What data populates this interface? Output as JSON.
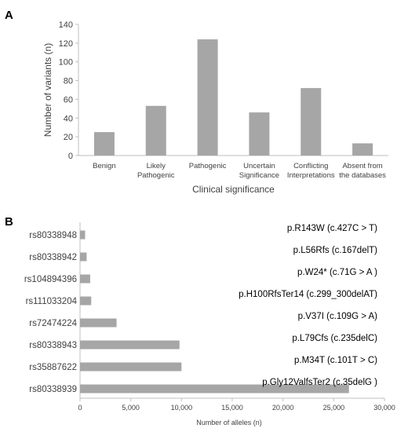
{
  "chart_data": [
    {
      "panel": "A",
      "type": "bar",
      "categories": [
        [
          "Benign"
        ],
        [
          "Likely",
          "Pathogenic"
        ],
        [
          "Pathogenic"
        ],
        [
          "Uncertain",
          "Significance"
        ],
        [
          "Conflicting",
          "Interpretations"
        ],
        [
          "Absent from",
          "the databases"
        ]
      ],
      "values": [
        25,
        53,
        124,
        46,
        72,
        13
      ],
      "xlabel": "Clinical significance",
      "ylabel": "Number of variants (n)",
      "ylim": [
        0,
        140
      ],
      "yticks": [
        0,
        20,
        40,
        60,
        80,
        100,
        120,
        140
      ],
      "grid": false,
      "color": "#a6a6a6"
    },
    {
      "panel": "B",
      "type": "bar",
      "orientation": "horizontal",
      "categories": [
        "rs80338948",
        "rs80338942",
        "rs104894396",
        "rs111033204",
        "rs72474224",
        "rs80338943",
        "rs35887622",
        "rs80338939"
      ],
      "annotations": [
        "p.R143W (c.427C > T)",
        "p.L56Rfs (c.167delT)",
        "p.W24* (c.71G > A )",
        "p.H100RfsTer14 (c.299_300delAT)",
        "p.V37I (c.109G > A)",
        "p.L79Cfs (c.235delC)",
        "p.M34T (c.101T > C)",
        "p.Gly12ValfsTer2 (c.35delG )"
      ],
      "values": [
        500,
        650,
        1000,
        1100,
        3600,
        9800,
        10000,
        26500
      ],
      "xlabel": "Number of alleles (n)",
      "xlim": [
        0,
        30000
      ],
      "xticks": [
        0,
        5000,
        10000,
        15000,
        20000,
        25000,
        30000
      ],
      "xtick_labels": [
        "0",
        "5,000",
        "10,000",
        "15,000",
        "20,000",
        "25,000",
        "30,000"
      ],
      "grid": false,
      "color": "#a6a6a6"
    }
  ]
}
